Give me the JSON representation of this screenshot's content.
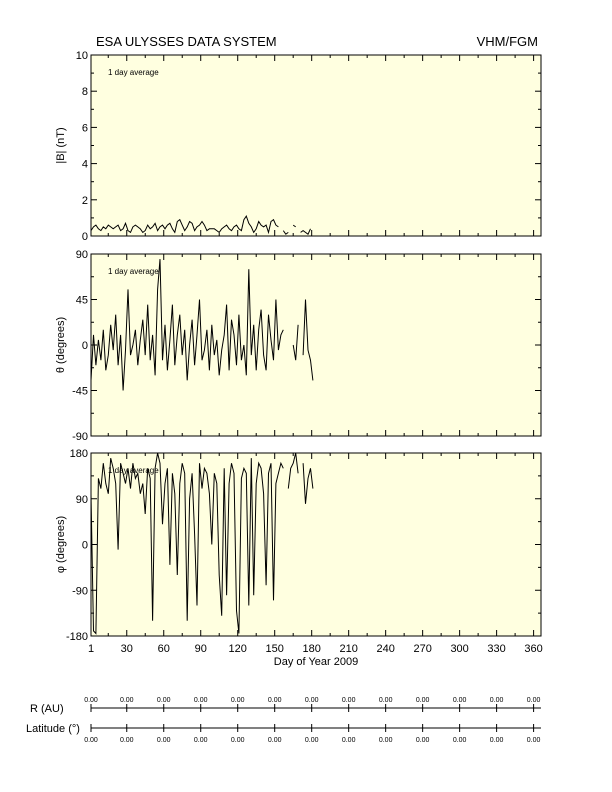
{
  "header": {
    "title": "ESA ULYSSES DATA SYSTEM",
    "instrument": "VHM/FGM"
  },
  "colors": {
    "panel_background": "#ffffe0",
    "line": "#000000"
  },
  "chart_data": [
    {
      "type": "line",
      "panel": "b_magnitude",
      "ylabel": "|B| (nT)",
      "annotation": "1 day average",
      "ylim": [
        0,
        10
      ],
      "yticks": [
        "10",
        "8",
        "6",
        "4",
        "2",
        "0"
      ],
      "ytick_values": [
        10,
        8,
        6,
        4,
        2,
        0
      ],
      "xlim": [
        1,
        366
      ],
      "x": [
        1,
        3,
        5,
        7,
        9,
        11,
        13,
        15,
        17,
        19,
        21,
        23,
        25,
        27,
        29,
        31,
        33,
        35,
        37,
        39,
        41,
        43,
        45,
        47,
        49,
        51,
        53,
        55,
        57,
        59,
        61,
        63,
        65,
        67,
        69,
        71,
        73,
        75,
        77,
        79,
        81,
        83,
        85,
        87,
        89,
        91,
        93,
        95,
        97,
        99,
        101,
        103,
        105,
        107,
        109,
        111,
        113,
        115,
        117,
        119,
        121,
        123,
        125,
        127,
        129,
        131,
        133,
        135,
        137,
        139,
        141,
        143,
        145,
        147,
        149,
        151,
        153,
        155,
        157,
        159,
        161,
        163,
        165,
        167,
        169,
        171,
        173,
        175,
        177,
        179,
        181
      ],
      "values": [
        0.3,
        0.5,
        0.6,
        0.4,
        0.3,
        0.5,
        0.4,
        0.6,
        0.5,
        0.4,
        0.5,
        0.6,
        0.3,
        0.4,
        0.7,
        0.3,
        0.2,
        0.5,
        0.6,
        0.5,
        0.4,
        0.2,
        0.3,
        0.6,
        0.4,
        0.5,
        0.7,
        0.3,
        0.5,
        0.6,
        0.4,
        0.6,
        0.7,
        0.4,
        0.2,
        0.8,
        0.9,
        0.6,
        0.3,
        0.5,
        0.8,
        0.7,
        0.3,
        0.5,
        0.6,
        0.8,
        0.6,
        0.3,
        0.4,
        0.4,
        0.4,
        0.3,
        0.2,
        0.4,
        0.5,
        0.6,
        0.4,
        0.3,
        0.5,
        0.6,
        0.4,
        0.3,
        0.9,
        1.1,
        0.7,
        0.5,
        0.2,
        0.4,
        0.8,
        0.6,
        0.5,
        0.6,
        0.2,
        0.8,
        0.9,
        0.6,
        0.5,
        null,
        0.3,
        0.1,
        0.2,
        null,
        0.6,
        0.5,
        null,
        0.2,
        0.3,
        0.2,
        0.1,
        0.4,
        null
      ]
    },
    {
      "type": "line",
      "panel": "theta",
      "ylabel": "θ (degrees)",
      "annotation": "1 day average",
      "ylim": [
        -90,
        90
      ],
      "yticks": [
        "90",
        "45",
        "0",
        "-45",
        "-90"
      ],
      "ytick_values": [
        90,
        45,
        0,
        -45,
        -90
      ],
      "xlim": [
        1,
        366
      ],
      "x": [
        1,
        3,
        5,
        7,
        9,
        11,
        13,
        15,
        17,
        19,
        21,
        23,
        25,
        27,
        29,
        31,
        33,
        35,
        37,
        39,
        41,
        43,
        45,
        47,
        49,
        51,
        53,
        55,
        57,
        59,
        61,
        63,
        65,
        67,
        69,
        71,
        73,
        75,
        77,
        79,
        81,
        83,
        85,
        87,
        89,
        91,
        93,
        95,
        97,
        99,
        101,
        103,
        105,
        107,
        109,
        111,
        113,
        115,
        117,
        119,
        121,
        123,
        125,
        127,
        129,
        131,
        133,
        135,
        137,
        139,
        141,
        143,
        145,
        147,
        149,
        151,
        153,
        155,
        157,
        159,
        161,
        163,
        165,
        167,
        169,
        171,
        173,
        175,
        177,
        179,
        181
      ],
      "values": [
        -35,
        10,
        -20,
        5,
        -15,
        15,
        -25,
        -10,
        20,
        -5,
        30,
        -20,
        10,
        -45,
        -5,
        55,
        -10,
        0,
        15,
        -20,
        5,
        25,
        -10,
        40,
        -15,
        10,
        -30,
        55,
        85,
        -15,
        20,
        -25,
        5,
        40,
        -20,
        10,
        30,
        -10,
        15,
        -35,
        0,
        25,
        -20,
        10,
        45,
        -15,
        -5,
        15,
        -25,
        20,
        -10,
        5,
        -30,
        -5,
        10,
        40,
        -25,
        25,
        10,
        -20,
        30,
        -15,
        0,
        -30,
        75,
        -10,
        20,
        -25,
        15,
        35,
        -10,
        -25,
        30,
        5,
        -15,
        45,
        -5,
        10,
        15,
        null,
        30,
        null,
        0,
        -15,
        20,
        null,
        -10,
        45,
        -5,
        -15,
        -35
      ]
    },
    {
      "type": "line",
      "panel": "phi",
      "ylabel": "φ (degrees)",
      "annotation": "1 day average",
      "ylim": [
        -180,
        180
      ],
      "yticks": [
        "180",
        "90",
        "0",
        "-90",
        "-180"
      ],
      "ytick_values": [
        180,
        90,
        0,
        -90,
        -180
      ],
      "xlim": [
        1,
        366
      ],
      "xticks": [
        "1",
        "30",
        "60",
        "90",
        "120",
        "150",
        "180",
        "210",
        "240",
        "270",
        "300",
        "330",
        "360"
      ],
      "xtick_values": [
        1,
        30,
        60,
        90,
        120,
        150,
        180,
        210,
        240,
        270,
        300,
        330,
        360
      ],
      "xlabel": "Day of Year 2009",
      "x": [
        1,
        3,
        5,
        7,
        9,
        11,
        13,
        15,
        17,
        19,
        21,
        23,
        25,
        27,
        29,
        31,
        33,
        35,
        37,
        39,
        41,
        43,
        45,
        47,
        49,
        51,
        53,
        55,
        57,
        59,
        61,
        63,
        65,
        67,
        69,
        71,
        73,
        75,
        77,
        79,
        81,
        83,
        85,
        87,
        89,
        91,
        93,
        95,
        97,
        99,
        101,
        103,
        105,
        107,
        109,
        111,
        113,
        115,
        117,
        119,
        121,
        123,
        125,
        127,
        129,
        131,
        133,
        135,
        137,
        139,
        141,
        143,
        145,
        147,
        149,
        151,
        153,
        155,
        157,
        159,
        161,
        163,
        165,
        167,
        169,
        171,
        173,
        175,
        177,
        179,
        181
      ],
      "values": [
        100,
        -170,
        -175,
        130,
        110,
        160,
        120,
        100,
        170,
        150,
        120,
        -10,
        160,
        140,
        120,
        150,
        110,
        160,
        130,
        140,
        100,
        120,
        60,
        150,
        130,
        -150,
        150,
        180,
        160,
        40,
        120,
        150,
        -40,
        140,
        100,
        -60,
        120,
        160,
        140,
        -150,
        90,
        140,
        20,
        -120,
        160,
        110,
        150,
        140,
        100,
        0,
        140,
        120,
        -60,
        -140,
        150,
        -100,
        120,
        160,
        140,
        -130,
        -175,
        130,
        150,
        140,
        -120,
        170,
        -100,
        120,
        160,
        150,
        100,
        -80,
        140,
        160,
        -110,
        120,
        140,
        160,
        150,
        null,
        110,
        150,
        160,
        180,
        140,
        null,
        160,
        80,
        130,
        150,
        110
      ]
    }
  ],
  "orbit_table": {
    "r_label": "R (AU)",
    "lat_label": "Latitude (°)",
    "r_values": [
      "0.00",
      "0.00",
      "0.00",
      "0.00",
      "0.00",
      "0.00",
      "0.00",
      "0.00",
      "0.00",
      "0.00",
      "0.00",
      "0.00",
      "0.00"
    ],
    "lat_values": [
      "0.00",
      "0.00",
      "0.00",
      "0.00",
      "0.00",
      "0.00",
      "0.00",
      "0.00",
      "0.00",
      "0.00",
      "0.00",
      "0.00",
      "0.00"
    ]
  }
}
